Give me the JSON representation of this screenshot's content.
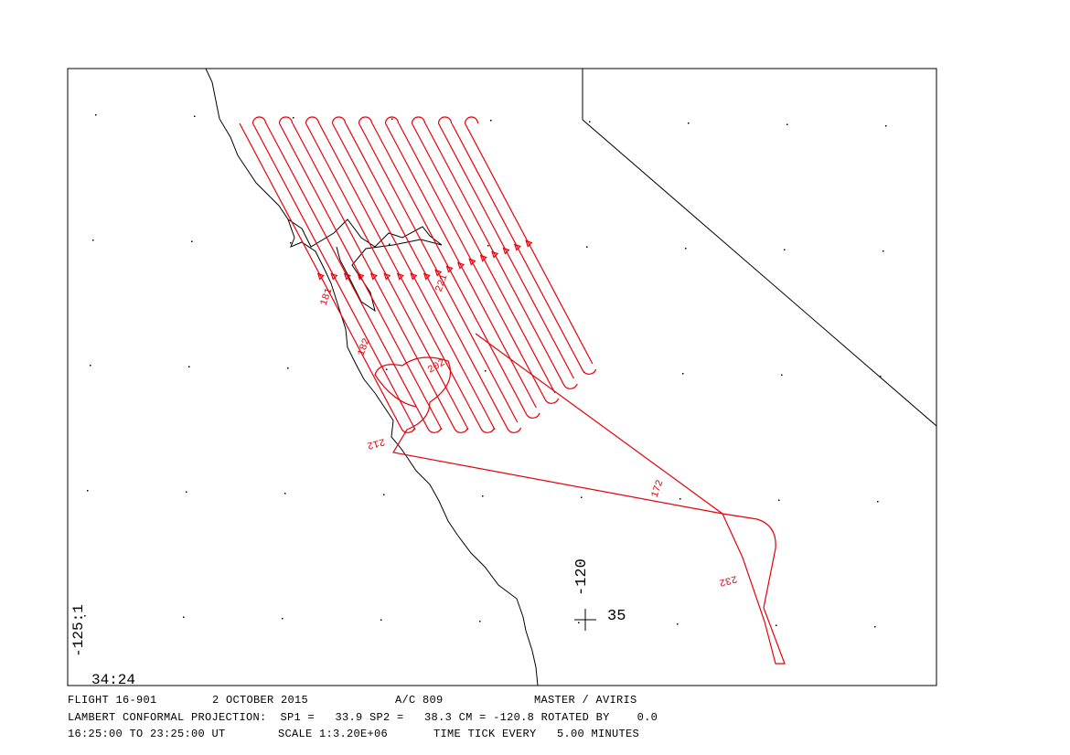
{
  "map": {
    "corner_lon": "-125:1",
    "corner_lat": "34:24",
    "ref_lon": "-120",
    "ref_lat": "35"
  },
  "track_labels": [
    "181",
    "182",
    "202",
    "212",
    "221",
    "172",
    "232"
  ],
  "footer": {
    "line1": [
      "FLIGHT 16-901",
      "2 OCTOBER 2015",
      "A/C 809",
      "MASTER / AVIRIS"
    ],
    "line2": "LAMBERT CONFORMAL PROJECTION:  SP1 =   33.9 SP2 =   38.3 CM = -120.8 ROTATED BY    0.0",
    "line3": [
      "16:25:00 TO 23:25:00 UT",
      "SCALE 1:3.20E+06",
      "TIME TICK EVERY   5.00 MINUTES"
    ]
  }
}
